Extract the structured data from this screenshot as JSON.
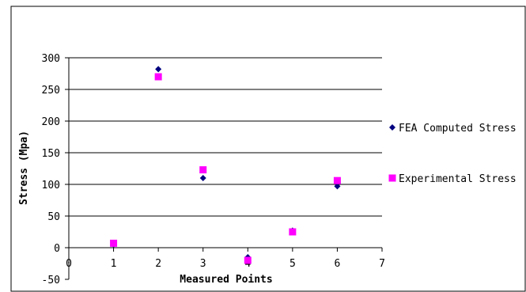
{
  "chart_data": {
    "type": "scatter",
    "xlabel": "Measured Points",
    "ylabel": "Stress (Mpa)",
    "xlim": [
      0,
      7
    ],
    "ylim": [
      -50,
      300
    ],
    "x_ticks": [
      0,
      1,
      2,
      3,
      4,
      5,
      6,
      7
    ],
    "y_ticks": [
      -50,
      0,
      50,
      100,
      150,
      200,
      250,
      300
    ],
    "grid": "horizontal",
    "legend_position": "right",
    "series": [
      {
        "name": "FEA Computed Stress",
        "marker": "diamond",
        "color": "#000080",
        "x": [
          1,
          2,
          3,
          4,
          5,
          6
        ],
        "y": [
          5,
          282,
          110,
          -15,
          27,
          97
        ]
      },
      {
        "name": "Experimental Stress",
        "marker": "square",
        "color": "#ff00ff",
        "x": [
          1,
          2,
          3,
          4,
          5,
          6
        ],
        "y": [
          7,
          270,
          123,
          -20,
          25,
          106
        ]
      }
    ]
  }
}
